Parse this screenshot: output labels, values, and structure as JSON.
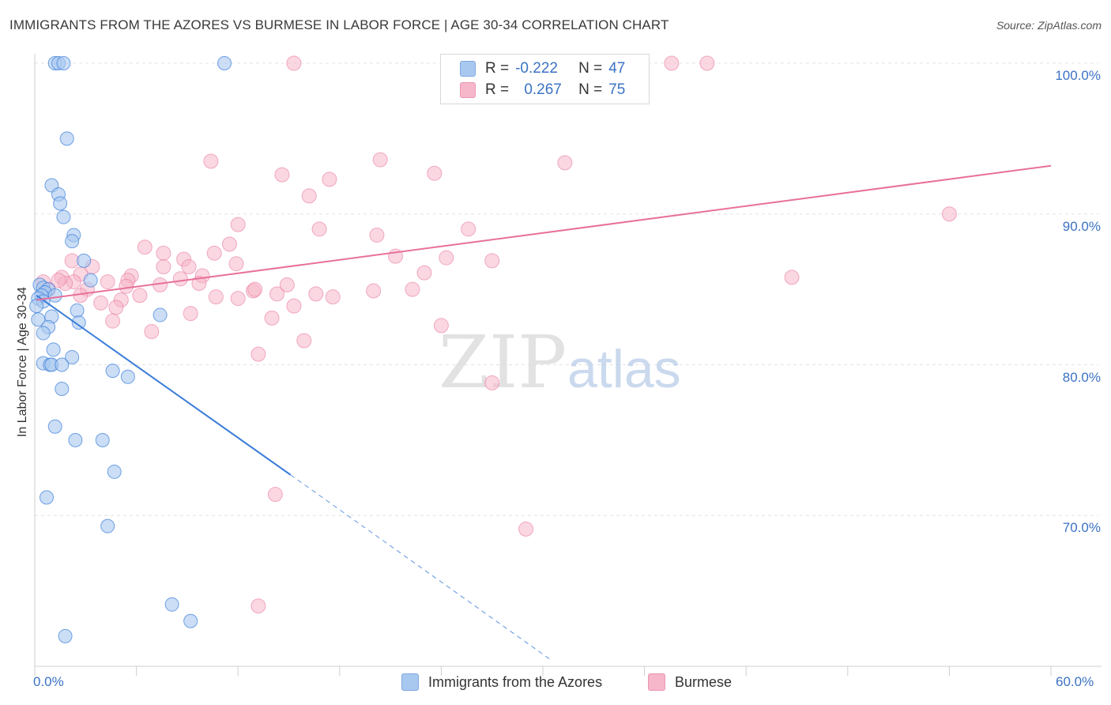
{
  "title": "IMMIGRANTS FROM THE AZORES VS BURMESE IN LABOR FORCE | AGE 30-34 CORRELATION CHART",
  "source": "Source: ZipAtlas.com",
  "watermark": {
    "zip": "ZIP",
    "atlas": "atlas"
  },
  "colors": {
    "blue": "#3b7dd8",
    "blue_fill": "#a9c8f0",
    "pink": "#e8709a",
    "pink_fill": "#f5b7c9",
    "axis_label": "#3b72c4"
  },
  "legend": {
    "row1": {
      "r_label": "R =",
      "r_value": "-0.222",
      "n_label": "N =",
      "n_value": "47"
    },
    "row2": {
      "r_label": "R =",
      "r_value": "0.267",
      "n_label": "N =",
      "n_value": "75"
    }
  },
  "bottom_legend": {
    "series1": "Immigrants from the Azores",
    "series2": "Burmese"
  },
  "chart_data": {
    "type": "scatter",
    "title": "IMMIGRANTS FROM THE AZORES VS BURMESE IN LABOR FORCE | AGE 30-34 CORRELATION CHART",
    "xlabel": "",
    "ylabel": "In Labor Force | Age 30-34",
    "xlim": [
      0,
      60
    ],
    "ylim": [
      61,
      101.5
    ],
    "x_tick_labels": [
      "0.0%",
      "60.0%"
    ],
    "y_ticks": [
      70,
      80,
      90,
      100
    ],
    "y_tick_labels": [
      "70.0%",
      "80.0%",
      "90.0%",
      "100.0%"
    ],
    "series": [
      {
        "name": "Immigrants from the Azores",
        "r": -0.222,
        "n": 47,
        "trend": {
          "x0": 0.1,
          "y0": 84.6,
          "x1": 15.1,
          "y1": 72.7,
          "dash_to_x": 30.5,
          "dash_to_y": 60.4
        },
        "points": [
          [
            1.2,
            100
          ],
          [
            1.4,
            100
          ],
          [
            1.7,
            100
          ],
          [
            11.2,
            100
          ],
          [
            1.9,
            95.0
          ],
          [
            1.0,
            91.9
          ],
          [
            1.4,
            91.3
          ],
          [
            1.5,
            90.7
          ],
          [
            1.7,
            89.8
          ],
          [
            2.3,
            88.6
          ],
          [
            2.2,
            88.2
          ],
          [
            2.9,
            86.9
          ],
          [
            3.3,
            85.6
          ],
          [
            0.3,
            85.3
          ],
          [
            0.5,
            85.1
          ],
          [
            0.8,
            85.0
          ],
          [
            0.6,
            84.8
          ],
          [
            0.4,
            84.6
          ],
          [
            0.2,
            84.4
          ],
          [
            1.2,
            84.6
          ],
          [
            0.5,
            84.2
          ],
          [
            2.5,
            83.6
          ],
          [
            7.4,
            83.3
          ],
          [
            1.0,
            83.2
          ],
          [
            0.2,
            83.0
          ],
          [
            2.6,
            82.8
          ],
          [
            0.8,
            82.5
          ],
          [
            0.5,
            82.1
          ],
          [
            1.1,
            81.0
          ],
          [
            2.2,
            80.5
          ],
          [
            0.5,
            80.1
          ],
          [
            0.9,
            80.0
          ],
          [
            1.0,
            80.0
          ],
          [
            1.6,
            80.0
          ],
          [
            4.6,
            79.6
          ],
          [
            5.5,
            79.2
          ],
          [
            1.6,
            78.4
          ],
          [
            1.2,
            75.9
          ],
          [
            2.4,
            75.0
          ],
          [
            4.0,
            75.0
          ],
          [
            4.7,
            72.9
          ],
          [
            0.7,
            71.2
          ],
          [
            4.3,
            69.3
          ],
          [
            8.1,
            64.1
          ],
          [
            9.2,
            63.0
          ],
          [
            1.8,
            62.0
          ],
          [
            0.1,
            83.9
          ]
        ]
      },
      {
        "name": "Burmese",
        "r": 0.267,
        "n": 75,
        "trend": {
          "x0": 0.1,
          "y0": 84.3,
          "x1": 60.0,
          "y1": 93.2
        },
        "points": [
          [
            15.3,
            100
          ],
          [
            24.6,
            100
          ],
          [
            25.0,
            100
          ],
          [
            37.6,
            100
          ],
          [
            39.7,
            100
          ],
          [
            10.4,
            93.5
          ],
          [
            20.4,
            93.6
          ],
          [
            31.3,
            93.4
          ],
          [
            14.6,
            92.6
          ],
          [
            23.6,
            92.7
          ],
          [
            17.4,
            92.3
          ],
          [
            16.2,
            91.2
          ],
          [
            54.0,
            90.0
          ],
          [
            12.0,
            89.3
          ],
          [
            16.8,
            89.0
          ],
          [
            20.2,
            88.6
          ],
          [
            25.6,
            89.0
          ],
          [
            11.5,
            88.0
          ],
          [
            6.5,
            87.8
          ],
          [
            7.6,
            87.4
          ],
          [
            10.6,
            87.4
          ],
          [
            21.3,
            87.2
          ],
          [
            24.3,
            87.1
          ],
          [
            27.0,
            86.9
          ],
          [
            2.2,
            86.9
          ],
          [
            8.8,
            87.0
          ],
          [
            3.4,
            86.5
          ],
          [
            7.6,
            86.5
          ],
          [
            9.1,
            86.5
          ],
          [
            11.9,
            86.7
          ],
          [
            23.0,
            86.1
          ],
          [
            44.7,
            85.8
          ],
          [
            1.6,
            85.8
          ],
          [
            2.7,
            86.0
          ],
          [
            5.7,
            85.9
          ],
          [
            9.9,
            85.9
          ],
          [
            8.6,
            85.7
          ],
          [
            5.5,
            85.6
          ],
          [
            2.3,
            85.5
          ],
          [
            1.8,
            85.4
          ],
          [
            4.3,
            85.5
          ],
          [
            7.4,
            85.3
          ],
          [
            9.7,
            85.4
          ],
          [
            14.9,
            85.3
          ],
          [
            5.4,
            85.2
          ],
          [
            3.1,
            85.0
          ],
          [
            12.9,
            84.9
          ],
          [
            20.0,
            84.9
          ],
          [
            13.0,
            85.0
          ],
          [
            16.6,
            84.7
          ],
          [
            14.3,
            84.7
          ],
          [
            17.6,
            84.5
          ],
          [
            22.3,
            85.0
          ],
          [
            2.7,
            84.6
          ],
          [
            6.2,
            84.6
          ],
          [
            10.7,
            84.5
          ],
          [
            5.1,
            84.3
          ],
          [
            3.9,
            84.1
          ],
          [
            15.3,
            83.9
          ],
          [
            4.8,
            83.8
          ],
          [
            9.2,
            83.4
          ],
          [
            14.0,
            83.1
          ],
          [
            4.6,
            82.9
          ],
          [
            24.0,
            82.6
          ],
          [
            6.9,
            82.2
          ],
          [
            15.9,
            81.6
          ],
          [
            13.2,
            80.7
          ],
          [
            27.0,
            78.8
          ],
          [
            14.2,
            71.4
          ],
          [
            29.0,
            69.1
          ],
          [
            13.2,
            64.0
          ],
          [
            0.8,
            85.0
          ],
          [
            1.4,
            85.6
          ],
          [
            0.5,
            85.5
          ],
          [
            12.0,
            84.4
          ]
        ]
      }
    ]
  }
}
